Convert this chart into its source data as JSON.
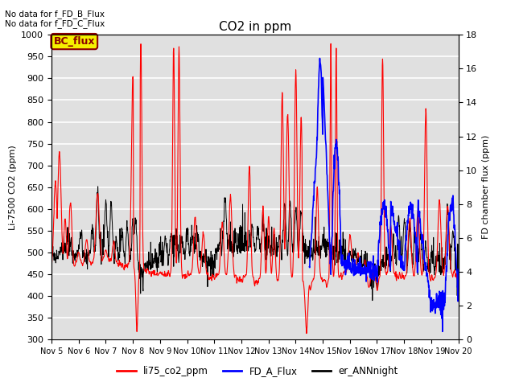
{
  "title": "CO2 in ppm",
  "ylabel_left": "Li-7500 CO2 (ppm)",
  "ylabel_right": "FD chamber flux (ppm)",
  "ylim_left": [
    300,
    1000
  ],
  "ylim_right": [
    0,
    18
  ],
  "yticks_left": [
    300,
    350,
    400,
    450,
    500,
    550,
    600,
    650,
    700,
    750,
    800,
    850,
    900,
    950,
    1000
  ],
  "yticks_right": [
    0,
    2,
    4,
    6,
    8,
    10,
    12,
    14,
    16,
    18
  ],
  "xtick_labels": [
    "Nov 5",
    "Nov 6",
    "Nov 7",
    "Nov 8",
    "Nov 9",
    "Nov 10",
    "Nov 11",
    "Nov 12",
    "Nov 13",
    "Nov 14",
    "Nov 15",
    "Nov 16",
    "Nov 17",
    "Nov 18",
    "Nov 19",
    "Nov 20"
  ],
  "text_anno1": "No data for f_FD_B_Flux",
  "text_anno2": "No data for f_FD_C_Flux",
  "bc_flux_label": "BC_flux",
  "legend_labels": [
    "li75_co2_ppm",
    "FD_A_Flux",
    "er_ANNnight"
  ],
  "bg_color": "#e0e0e0",
  "grid_color": "white",
  "n_days": 15,
  "n_per_day": 96
}
